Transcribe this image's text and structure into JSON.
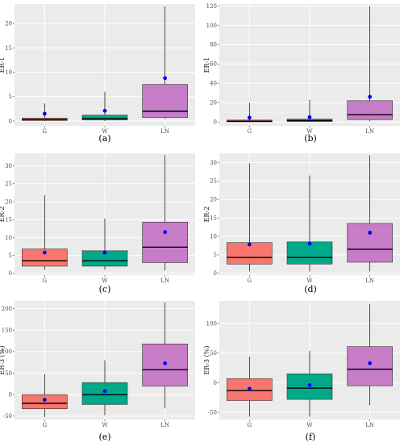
{
  "colors": {
    "panel_bg": "#ebebeb",
    "grid_major": "#ffffff",
    "grid_minor": "#f5f5f5",
    "G": "#f8766d",
    "W": "#00a98a",
    "LN": "#c77cc7",
    "mean_point": "#0000ff",
    "median": "#000000",
    "whisker": "#000000"
  },
  "chart_data": [
    {
      "type": "boxplot",
      "caption": "(a)",
      "ylabel": "ER-1",
      "categories": [
        "G",
        "W",
        "LN"
      ],
      "ylim": [
        -1,
        24
      ],
      "yticks": [
        0,
        5,
        10,
        15,
        20
      ],
      "boxes": [
        {
          "category": "G",
          "min": 0,
          "q1": 0.1,
          "median": 0.3,
          "q3": 0.6,
          "max": 3.6,
          "mean": 1.5
        },
        {
          "category": "W",
          "min": 0,
          "q1": 0.2,
          "median": 0.5,
          "q3": 1.2,
          "max": 6.0,
          "mean": 2.1
        },
        {
          "category": "LN",
          "min": 0.4,
          "q1": 0.7,
          "median": 2.0,
          "q3": 7.5,
          "max": 23.5,
          "mean": 8.8
        }
      ]
    },
    {
      "type": "boxplot",
      "caption": "(b)",
      "ylabel": "ER-1",
      "categories": [
        "G",
        "W",
        "LN"
      ],
      "ylim": [
        -4,
        122
      ],
      "yticks": [
        0,
        20,
        40,
        60,
        80,
        100,
        120
      ],
      "boxes": [
        {
          "category": "G",
          "min": 0,
          "q1": 0.2,
          "median": 0.8,
          "q3": 2.0,
          "max": 20,
          "mean": 4.5
        },
        {
          "category": "W",
          "min": 0,
          "q1": 0.5,
          "median": 1.5,
          "q3": 3.0,
          "max": 23,
          "mean": 5.0
        },
        {
          "category": "LN",
          "min": 0.5,
          "q1": 2.5,
          "median": 7.5,
          "q3": 22.0,
          "max": 120,
          "mean": 26
        }
      ]
    },
    {
      "type": "boxplot",
      "caption": "(c)",
      "ylabel": "ER-2",
      "categories": [
        "G",
        "W",
        "LN"
      ],
      "ylim": [
        -0.5,
        33.5
      ],
      "yticks": [
        0,
        5,
        10,
        15,
        20,
        25,
        30
      ],
      "boxes": [
        {
          "category": "G",
          "min": 1,
          "q1": 2.0,
          "median": 3.5,
          "q3": 6.8,
          "max": 21.8,
          "mean": 5.8
        },
        {
          "category": "W",
          "min": 1,
          "q1": 2.0,
          "median": 3.5,
          "q3": 6.3,
          "max": 15.3,
          "mean": 5.8
        },
        {
          "category": "LN",
          "min": 0.8,
          "q1": 3.0,
          "median": 7.3,
          "q3": 14.3,
          "max": 33.0,
          "mean": 11.5
        }
      ]
    },
    {
      "type": "boxplot",
      "caption": "(d)",
      "ylabel": "ER-2",
      "categories": [
        "G",
        "W",
        "LN"
      ],
      "ylim": [
        -0.5,
        32.5
      ],
      "yticks": [
        0,
        5,
        10,
        15,
        20,
        25,
        30
      ],
      "boxes": [
        {
          "category": "G",
          "min": 0.5,
          "q1": 2.5,
          "median": 4.3,
          "q3": 8.3,
          "max": 29.8,
          "mean": 7.8
        },
        {
          "category": "W",
          "min": 0.5,
          "q1": 2.5,
          "median": 4.3,
          "q3": 8.5,
          "max": 26.5,
          "mean": 8.0
        },
        {
          "category": "LN",
          "min": 0.5,
          "q1": 3.0,
          "median": 6.5,
          "q3": 13.5,
          "max": 32.0,
          "mean": 11.0
        }
      ]
    },
    {
      "type": "boxplot",
      "caption": "(e)",
      "ylabel": "ER-3 (%)",
      "categories": [
        "G",
        "W",
        "LN"
      ],
      "ylim": [
        -58,
        218
      ],
      "yticks": [
        -50,
        0,
        50,
        100,
        150,
        200
      ],
      "boxes": [
        {
          "category": "G",
          "min": -52,
          "q1": -33,
          "median": -20,
          "q3": 0,
          "max": 48,
          "mean": -12
        },
        {
          "category": "W",
          "min": -48,
          "q1": -23,
          "median": 0,
          "q3": 28,
          "max": 80,
          "mean": 8
        },
        {
          "category": "LN",
          "min": -32,
          "q1": 20,
          "median": 58,
          "q3": 118,
          "max": 215,
          "mean": 73
        }
      ]
    },
    {
      "type": "boxplot",
      "caption": "(f)",
      "ylabel": "ER-3 (%)",
      "categories": [
        "G",
        "W",
        "LN"
      ],
      "ylim": [
        -62,
        138
      ],
      "yticks": [
        -50,
        0,
        50,
        100
      ],
      "boxes": [
        {
          "category": "G",
          "min": -57,
          "q1": -30,
          "median": -13,
          "q3": 7,
          "max": 44,
          "mean": -10
        },
        {
          "category": "W",
          "min": -57,
          "q1": -28,
          "median": -9,
          "q3": 15,
          "max": 54,
          "mean": -4
        },
        {
          "category": "LN",
          "min": -38,
          "q1": -5,
          "median": 23,
          "q3": 61,
          "max": 133,
          "mean": 33
        }
      ]
    }
  ]
}
